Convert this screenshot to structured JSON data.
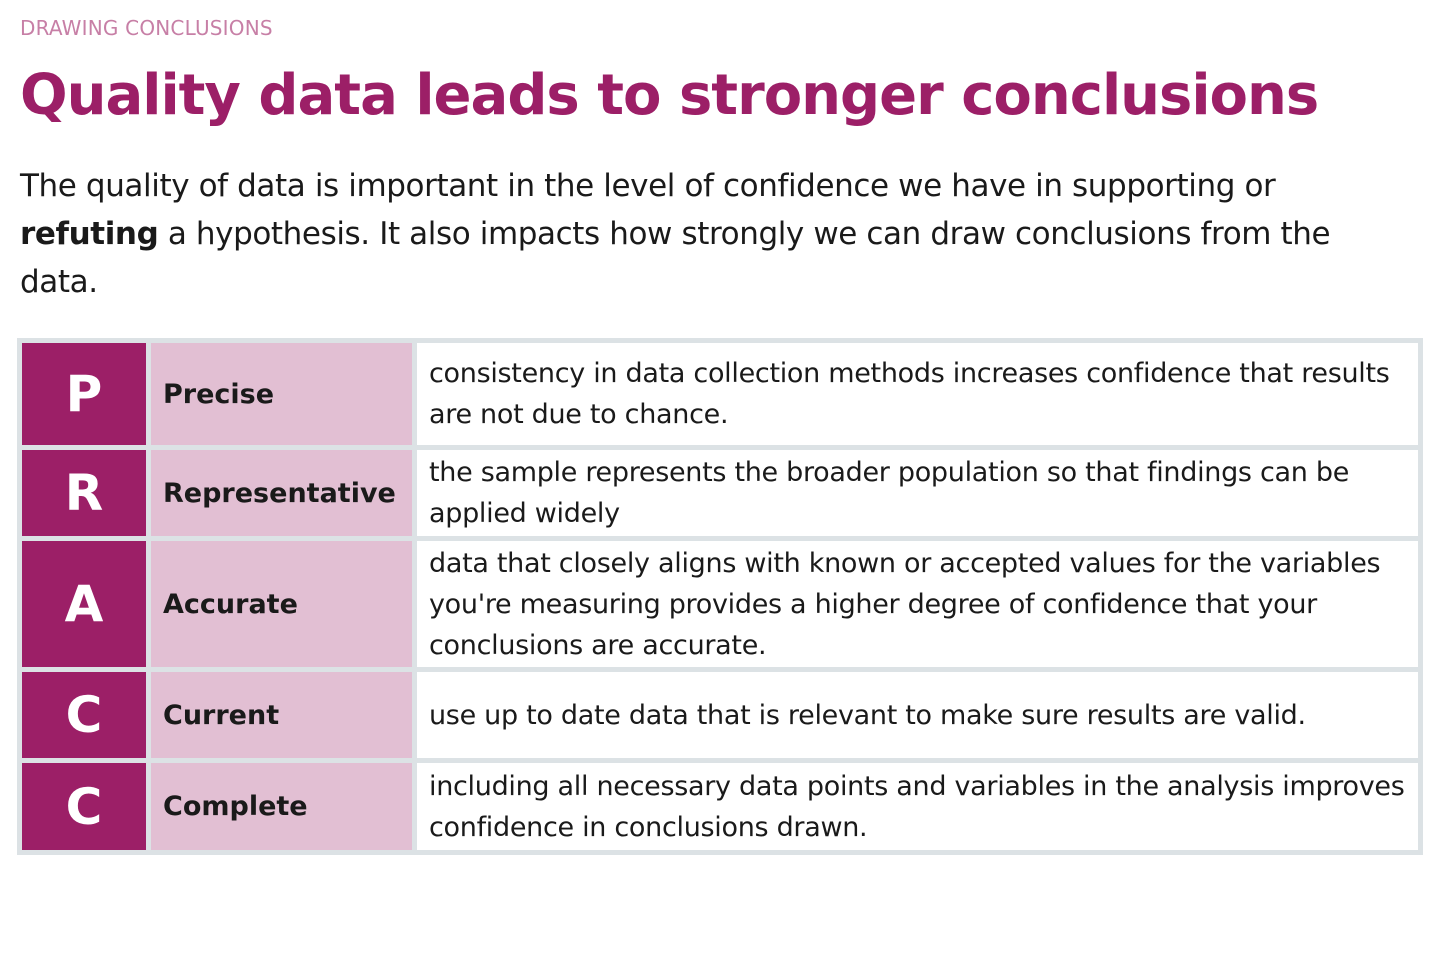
{
  "eyebrow": "DRAWING CONCLUSIONS",
  "title": "Quality data leads to stronger conclusions",
  "intro": {
    "part1": "The quality of data is important in the level of confidence we have in supporting or ",
    "bold": "refuting",
    "part2": " a hypothesis. It also impacts how strongly we can draw conclusions from the data."
  },
  "colors": {
    "accent": "#9c1f67",
    "term_bg": "#e2bfd3",
    "border": "#dce2e5",
    "eyebrow": "#c77fa6"
  },
  "rows": [
    {
      "letter": "P",
      "term": "Precise",
      "description": "consistency in data collection methods increases confidence that results are not due to chance."
    },
    {
      "letter": "R",
      "term": "Representative",
      "description": "the sample represents the broader population so that findings can be applied widely"
    },
    {
      "letter": "A",
      "term": "Accurate",
      "description": "data that closely aligns with known or accepted values for the variables you're measuring provides a higher degree of confidence that your conclusions are accurate."
    },
    {
      "letter": "C",
      "term": "Current",
      "description": "use up to date data that is relevant to make sure results are valid."
    },
    {
      "letter": "C",
      "term": "Complete",
      "description": "including all necessary data points and variables in the analysis improves confidence in conclusions drawn."
    }
  ]
}
